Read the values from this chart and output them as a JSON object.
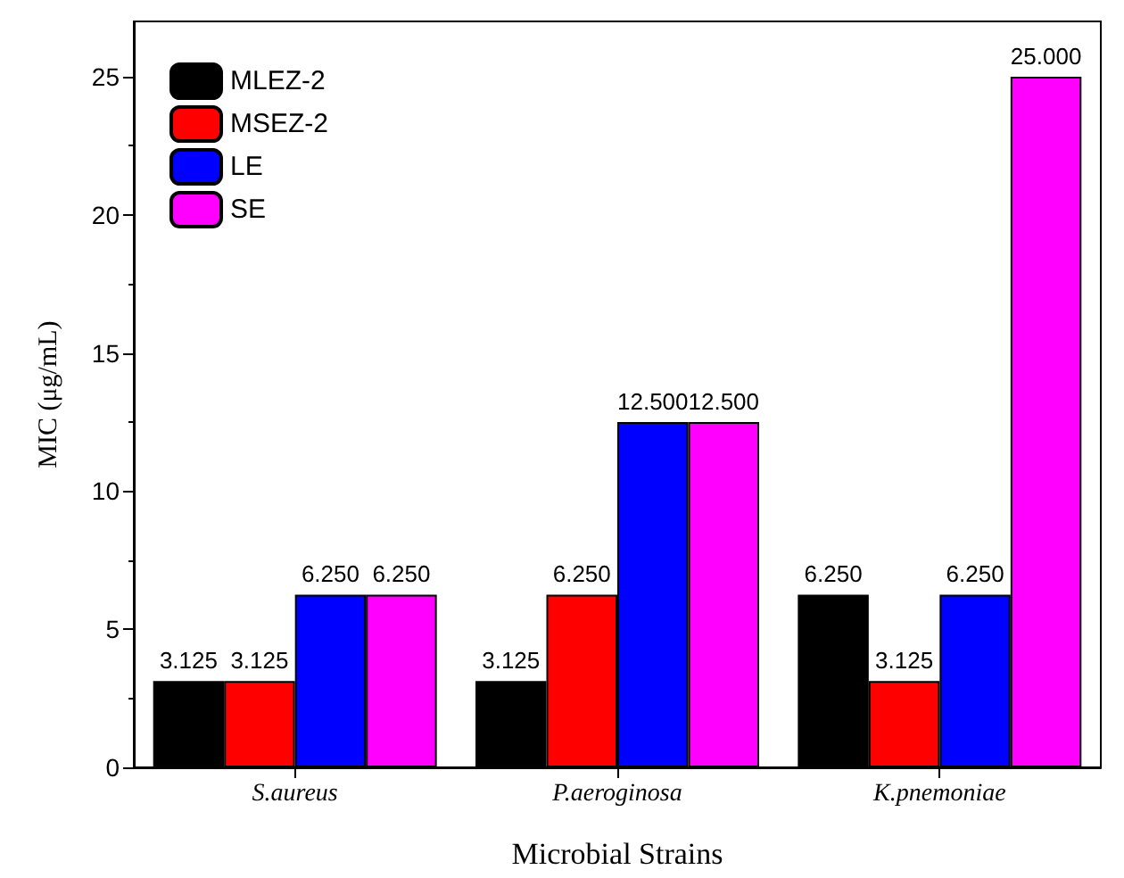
{
  "chart_data": {
    "type": "bar",
    "xlabel": "Microbial Strains",
    "ylabel": "MIC (μg/mL)",
    "categories": [
      "S.aureus",
      "P.aeroginosa",
      "K.pnemoniae"
    ],
    "series": [
      {
        "name": "MLEZ-2",
        "color": "#000000",
        "values": [
          3.125,
          3.125,
          6.25
        ],
        "value_labels": [
          "3.125",
          "3.125",
          "6.250"
        ]
      },
      {
        "name": "MSEZ-2",
        "color": "#ff0000",
        "values": [
          3.125,
          6.25,
          3.125
        ],
        "value_labels": [
          "3.125",
          "6.250",
          "3.125"
        ]
      },
      {
        "name": "LE",
        "color": "#0000ff",
        "values": [
          6.25,
          12.5,
          6.25
        ],
        "value_labels": [
          "6.250",
          "12.500",
          "6.250"
        ]
      },
      {
        "name": "SE",
        "color": "#ff00ff",
        "values": [
          6.25,
          12.5,
          25
        ],
        "value_labels": [
          "6.250",
          "12.500",
          "25.000"
        ]
      }
    ],
    "ylim": [
      0,
      27
    ],
    "yticks": [
      0,
      5,
      10,
      15,
      20,
      25
    ],
    "grid": false,
    "legend": "top left"
  }
}
